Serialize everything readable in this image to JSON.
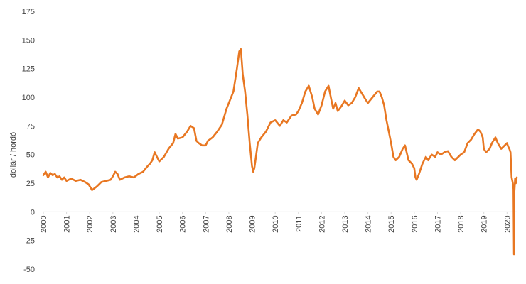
{
  "chart_data": {
    "type": "line",
    "title": "",
    "ylabel": "dollár / hordó",
    "xlabel": "",
    "ylim": [
      -50,
      175
    ],
    "xlim": [
      2000.0,
      2020.42
    ],
    "yticks": [
      -50,
      -25,
      0,
      25,
      50,
      75,
      100,
      125,
      150,
      175
    ],
    "xticks": [
      "2000",
      "2001",
      "2002",
      "2003",
      "2004",
      "2005",
      "2006",
      "2007",
      "2008",
      "2009",
      "2010",
      "2011",
      "2012",
      "2013",
      "2014",
      "2015",
      "2016",
      "2017",
      "2018",
      "2019",
      "2020"
    ],
    "grid": false,
    "legend": "none",
    "colors": {
      "series": "#e87722",
      "axis": "#d9d9d9",
      "text": "#444444"
    },
    "series": [
      {
        "x": [
          2000.0,
          2000.1,
          2000.2,
          2000.3,
          2000.4,
          2000.5,
          2000.6,
          2000.7,
          2000.8,
          2000.9,
          2001.0,
          2001.2,
          2001.4,
          2001.6,
          2001.8,
          2001.95,
          2002.1,
          2002.3,
          2002.5,
          2002.7,
          2002.9,
          2003.0,
          2003.1,
          2003.2,
          2003.3,
          2003.5,
          2003.7,
          2003.9,
          2004.1,
          2004.3,
          2004.5,
          2004.6,
          2004.7,
          2004.8,
          2004.9,
          2005.0,
          2005.2,
          2005.4,
          2005.6,
          2005.7,
          2005.8,
          2006.0,
          2006.2,
          2006.35,
          2006.5,
          2006.6,
          2006.7,
          2006.85,
          2007.0,
          2007.1,
          2007.3,
          2007.5,
          2007.7,
          2007.9,
          2008.0,
          2008.2,
          2008.35,
          2008.45,
          2008.52,
          2008.6,
          2008.7,
          2008.8,
          2008.9,
          2009.0,
          2009.05,
          2009.1,
          2009.15,
          2009.25,
          2009.4,
          2009.6,
          2009.8,
          2010.0,
          2010.2,
          2010.35,
          2010.5,
          2010.7,
          2010.9,
          2011.0,
          2011.15,
          2011.3,
          2011.45,
          2011.6,
          2011.7,
          2011.85,
          2012.0,
          2012.15,
          2012.3,
          2012.4,
          2012.5,
          2012.6,
          2012.7,
          2012.85,
          2013.0,
          2013.15,
          2013.3,
          2013.45,
          2013.6,
          2013.75,
          2013.9,
          2014.0,
          2014.2,
          2014.4,
          2014.5,
          2014.6,
          2014.7,
          2014.8,
          2014.9,
          2015.0,
          2015.1,
          2015.2,
          2015.35,
          2015.5,
          2015.6,
          2015.75,
          2015.9,
          2016.0,
          2016.05,
          2016.1,
          2016.2,
          2016.35,
          2016.5,
          2016.6,
          2016.75,
          2016.9,
          2017.0,
          2017.15,
          2017.3,
          2017.45,
          2017.6,
          2017.75,
          2017.9,
          2018.0,
          2018.15,
          2018.3,
          2018.45,
          2018.6,
          2018.75,
          2018.85,
          2018.95,
          2019.0,
          2019.1,
          2019.25,
          2019.35,
          2019.5,
          2019.6,
          2019.75,
          2019.9,
          2020.0,
          2020.05,
          2020.1,
          2020.15,
          2020.2,
          2020.25,
          2020.28,
          2020.3,
          2020.31,
          2020.33,
          2020.35,
          2020.38,
          2020.42
        ],
        "y": [
          32,
          35,
          30,
          34,
          32,
          33,
          30,
          31,
          28,
          30,
          27,
          29,
          27,
          28,
          26,
          24,
          19,
          22,
          26,
          27,
          28,
          31,
          35,
          33,
          28,
          30,
          31,
          30,
          33,
          35,
          40,
          42,
          45,
          52,
          48,
          44,
          48,
          55,
          60,
          68,
          64,
          65,
          70,
          75,
          73,
          62,
          60,
          58,
          58,
          62,
          65,
          70,
          76,
          90,
          95,
          105,
          125,
          140,
          142,
          120,
          105,
          85,
          60,
          40,
          35,
          38,
          45,
          60,
          65,
          70,
          78,
          80,
          75,
          80,
          78,
          84,
          85,
          88,
          95,
          105,
          110,
          100,
          90,
          85,
          93,
          105,
          110,
          100,
          90,
          95,
          88,
          92,
          97,
          93,
          95,
          100,
          108,
          103,
          98,
          95,
          100,
          105,
          105,
          100,
          93,
          80,
          70,
          60,
          48,
          45,
          48,
          55,
          58,
          45,
          42,
          38,
          30,
          28,
          33,
          42,
          48,
          45,
          50,
          48,
          52,
          50,
          52,
          53,
          48,
          45,
          48,
          50,
          52,
          60,
          63,
          68,
          72,
          70,
          65,
          55,
          52,
          55,
          60,
          65,
          60,
          55,
          58,
          60,
          57,
          55,
          52,
          30,
          25,
          20,
          -37,
          15,
          22,
          29,
          25,
          30
        ]
      }
    ]
  }
}
